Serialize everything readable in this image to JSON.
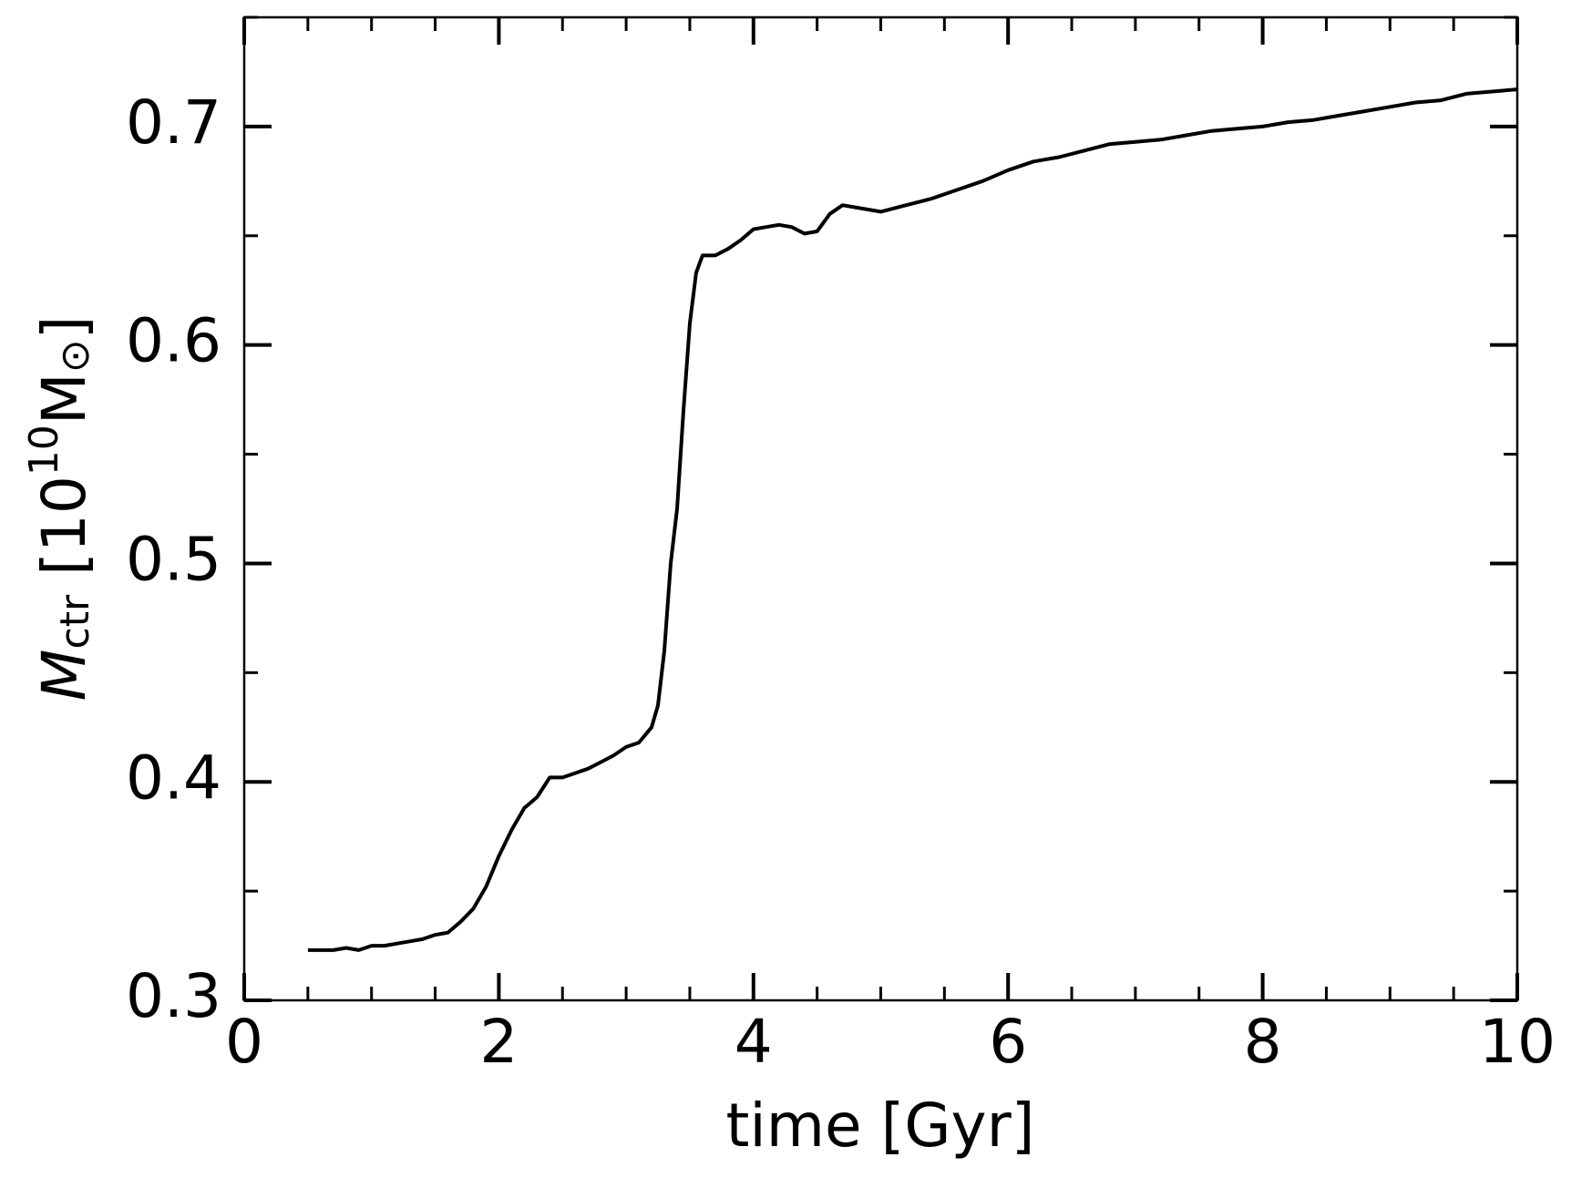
{
  "chart_data": {
    "type": "line",
    "xlabel": "time [Gyr]",
    "ylabel": [
      "M",
      "ctr",
      " [10",
      "10",
      "M",
      "⊙",
      "]"
    ],
    "x": [
      0.5,
      0.6,
      0.7,
      0.8,
      0.9,
      1.0,
      1.1,
      1.2,
      1.3,
      1.4,
      1.5,
      1.6,
      1.7,
      1.8,
      1.9,
      2.0,
      2.1,
      2.2,
      2.3,
      2.4,
      2.5,
      2.6,
      2.7,
      2.8,
      2.9,
      3.0,
      3.1,
      3.2,
      3.25,
      3.3,
      3.35,
      3.4,
      3.45,
      3.5,
      3.55,
      3.6,
      3.7,
      3.8,
      3.9,
      4.0,
      4.1,
      4.2,
      4.3,
      4.4,
      4.5,
      4.6,
      4.7,
      4.8,
      5.0,
      5.2,
      5.4,
      5.6,
      5.8,
      6.0,
      6.2,
      6.4,
      6.6,
      6.8,
      7.0,
      7.2,
      7.4,
      7.6,
      7.8,
      8.0,
      8.2,
      8.4,
      8.6,
      8.8,
      9.0,
      9.2,
      9.4,
      9.6,
      9.8,
      10.0
    ],
    "values": [
      0.323,
      0.323,
      0.323,
      0.324,
      0.323,
      0.325,
      0.325,
      0.326,
      0.327,
      0.328,
      0.33,
      0.331,
      0.336,
      0.342,
      0.352,
      0.366,
      0.378,
      0.388,
      0.393,
      0.402,
      0.402,
      0.404,
      0.406,
      0.409,
      0.412,
      0.416,
      0.418,
      0.425,
      0.435,
      0.46,
      0.5,
      0.525,
      0.57,
      0.61,
      0.633,
      0.641,
      0.641,
      0.644,
      0.648,
      0.653,
      0.654,
      0.655,
      0.654,
      0.651,
      0.652,
      0.66,
      0.664,
      0.663,
      0.661,
      0.664,
      0.667,
      0.671,
      0.675,
      0.68,
      0.684,
      0.686,
      0.689,
      0.692,
      0.693,
      0.694,
      0.696,
      0.698,
      0.699,
      0.7,
      0.702,
      0.703,
      0.705,
      0.707,
      0.709,
      0.711,
      0.712,
      0.715,
      0.716,
      0.717
    ],
    "color": "#000000",
    "xlim": [
      0,
      10
    ],
    "ylim": [
      0.3,
      0.75
    ],
    "xticks": [
      0,
      2,
      4,
      6,
      8,
      10
    ],
    "yticks": [
      0.3,
      0.4,
      0.5,
      0.6,
      0.7
    ],
    "xminorticks": [
      0.5,
      1,
      1.5,
      2.5,
      3,
      3.5,
      4.5,
      5,
      5.5,
      6.5,
      7,
      7.5,
      8.5,
      9,
      9.5
    ],
    "yminorticks": [
      0.35,
      0.45,
      0.55,
      0.65,
      0.75
    ]
  }
}
